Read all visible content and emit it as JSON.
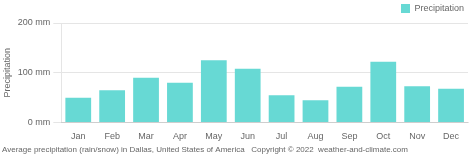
{
  "chart_data": {
    "type": "bar",
    "categories": [
      "Jan",
      "Feb",
      "Mar",
      "Apr",
      "May",
      "Jun",
      "Jul",
      "Aug",
      "Sep",
      "Oct",
      "Nov",
      "Dec"
    ],
    "series": [
      {
        "name": "Precipitation",
        "color": "#67d9d4",
        "values": [
          50,
          65,
          90,
          80,
          125,
          108,
          55,
          45,
          72,
          122,
          73,
          68
        ]
      }
    ],
    "ylabel": "Precipitation",
    "ylim": [
      0,
      200
    ],
    "yticks": [
      {
        "value": 0,
        "label": "0 mm"
      },
      {
        "value": 100,
        "label": "100 mm"
      },
      {
        "value": 200,
        "label": "200 mm"
      }
    ],
    "grid": "y",
    "legend": "upper right",
    "annotations": [
      "Average precipitation (rain/snow) in Dallas, United States of America   Copyright © 2022  weather-and-climate.com"
    ]
  }
}
